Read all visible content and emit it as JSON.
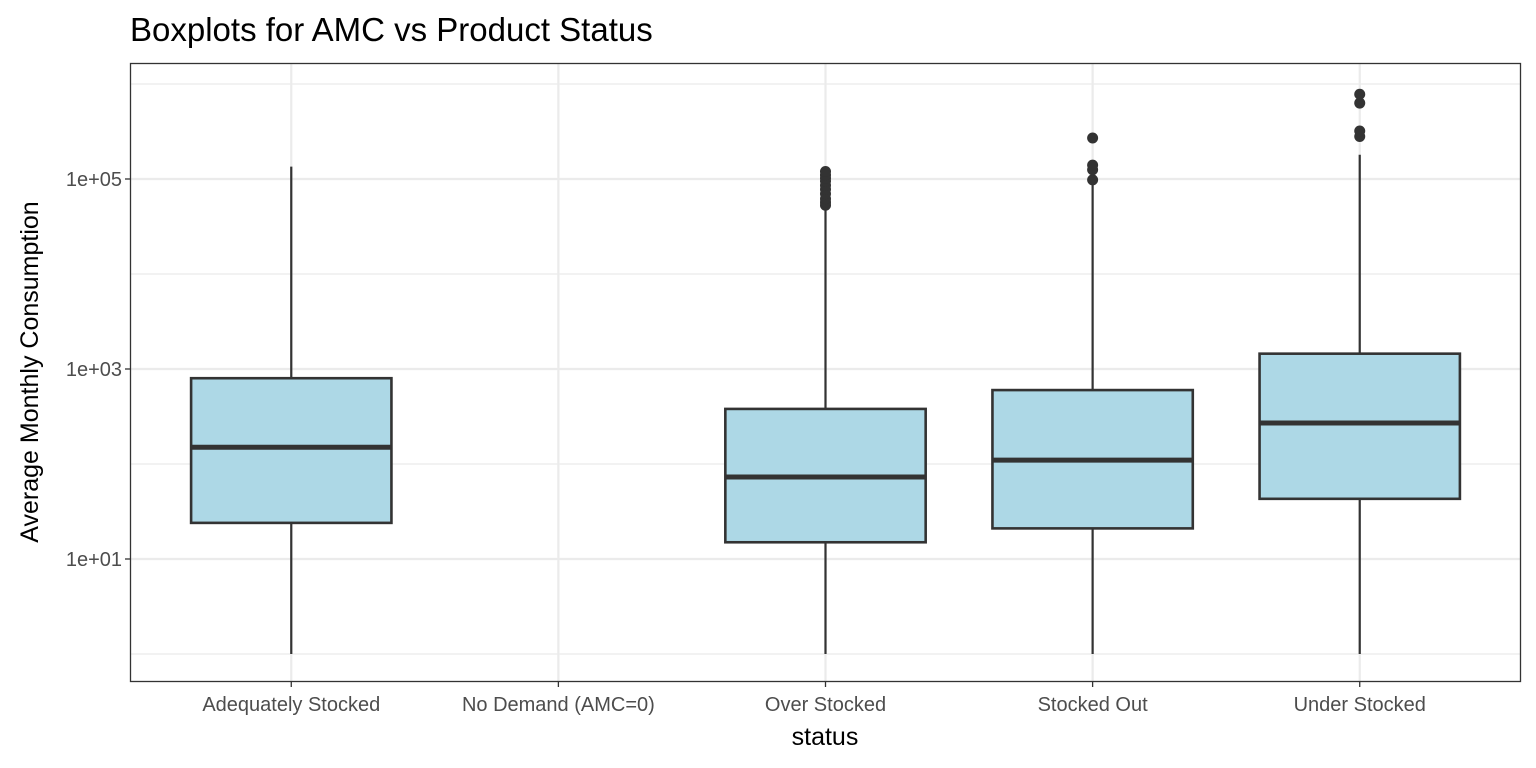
{
  "chart_data": {
    "type": "boxplot",
    "title": "Boxplots for AMC vs Product Status",
    "xlabel": "status",
    "ylabel": "Average Monthly Consumption",
    "y_scale": "log10",
    "ylim": [
      0.5,
      1500000
    ],
    "y_ticks": [
      {
        "value": 10,
        "label": "1e+01"
      },
      {
        "value": 1000,
        "label": "1e+03"
      },
      {
        "value": 100000,
        "label": "1e+05"
      }
    ],
    "y_minor_ticks": [
      1,
      100,
      10000,
      1000000
    ],
    "grid": true,
    "legend": "none",
    "box_fill": "#add8e6",
    "line_color": "#333333",
    "categories": [
      "Adequately Stocked",
      "No Demand (AMC=0)",
      "Over Stocked",
      "Stocked Out",
      "Under Stocked"
    ],
    "boxes": [
      {
        "category": "Adequately Stocked",
        "whisker_low": 1,
        "q1": 24,
        "median": 150,
        "q3": 800,
        "whisker_high": 135000,
        "outliers": []
      },
      {
        "category": "No Demand (AMC=0)",
        "whisker_low": null,
        "q1": null,
        "median": null,
        "q3": null,
        "whisker_high": null,
        "outliers": []
      },
      {
        "category": "Over Stocked",
        "whisker_low": 1,
        "q1": 15,
        "median": 73,
        "q3": 380,
        "whisker_high": 48000,
        "outliers": [
          53000,
          57000,
          62000,
          70000,
          78000,
          86000,
          95000,
          102000,
          110000,
          120000
        ]
      },
      {
        "category": "Stocked Out",
        "whisker_low": 1,
        "q1": 21,
        "median": 110,
        "q3": 600,
        "whisker_high": 90000,
        "outliers": [
          98000,
          125000,
          140000,
          270000
        ]
      },
      {
        "category": "Under Stocked",
        "whisker_low": 1,
        "q1": 43,
        "median": 270,
        "q3": 1450,
        "whisker_high": 180000,
        "outliers": [
          280000,
          320000,
          630000,
          780000
        ]
      }
    ]
  }
}
